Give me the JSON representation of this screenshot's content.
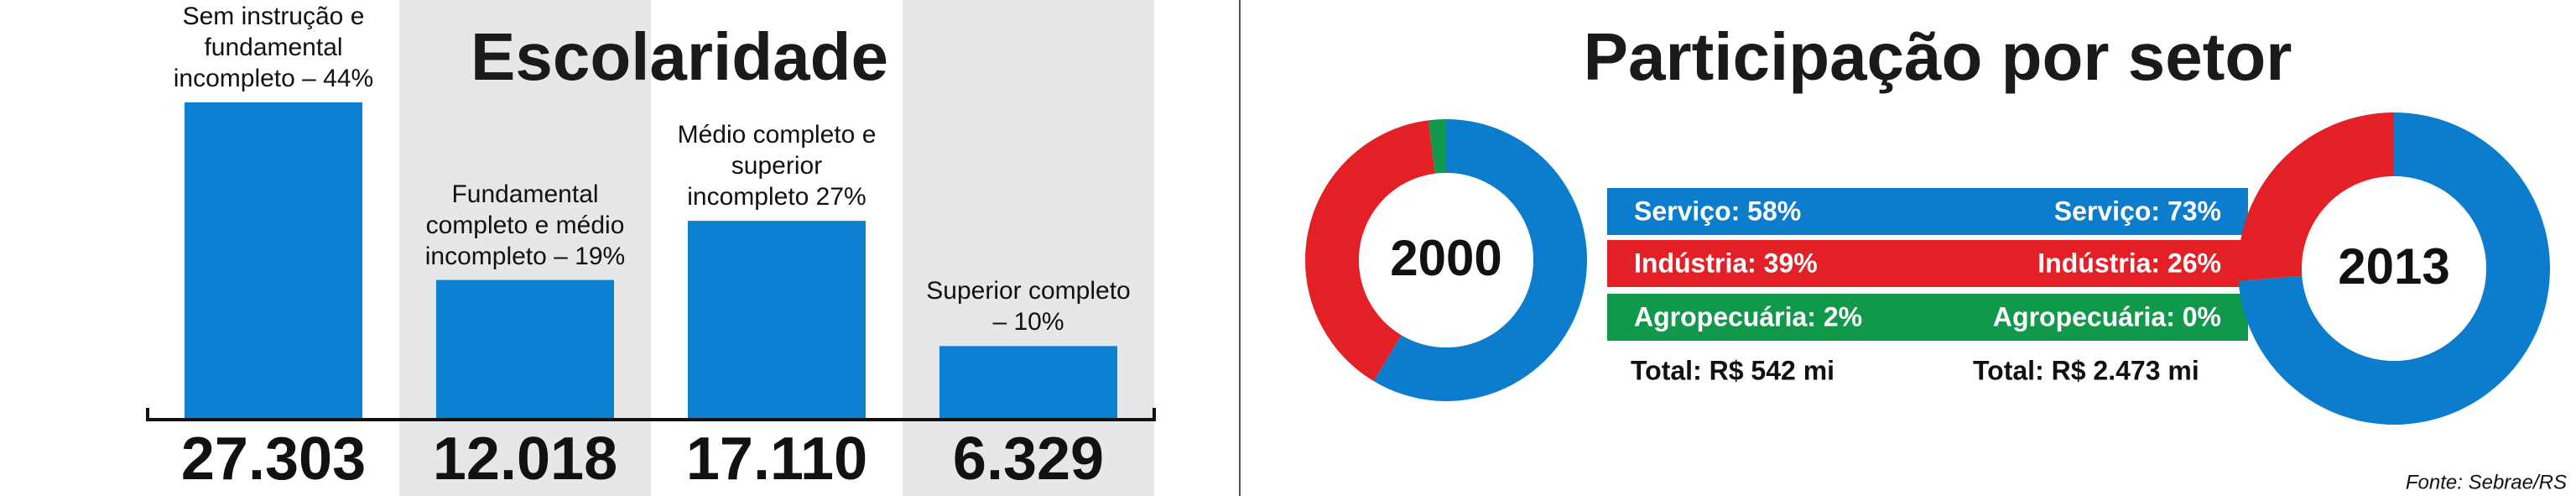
{
  "chart_data": [
    {
      "type": "bar",
      "title": "Escolaridade",
      "categories": [
        "Sem instrução e fundamental incompleto – 44%",
        "Fundamental completo e médio incompleto – 19%",
        "Médio completo e superior incompleto 27%",
        "Superior completo – 10%"
      ],
      "values": [
        27303,
        12018,
        17110,
        6329
      ],
      "value_labels": [
        "27.303",
        "12.018",
        "17.110",
        "6.329"
      ],
      "color": "#0b80d0"
    },
    {
      "type": "donut",
      "title": "Participação por setor",
      "colors": [
        "#0b7dcc",
        "#e42027",
        "#10994a"
      ],
      "pies": [
        {
          "label": "2000",
          "total": "Total: R$ 542 mi",
          "values": [
            58,
            39,
            2
          ],
          "value_labels": [
            "Serviço: 58%",
            "Indústria: 39%",
            "Agropecuária: 2%"
          ]
        },
        {
          "label": "2013",
          "total": "Total: R$ 2.473 mi",
          "values": [
            73,
            26,
            0
          ],
          "value_labels": [
            "Serviço: 73%",
            "Indústria: 26%",
            "Agropecuária: 0%"
          ]
        }
      ]
    }
  ],
  "source": "Fonte: Sebrae/RS"
}
